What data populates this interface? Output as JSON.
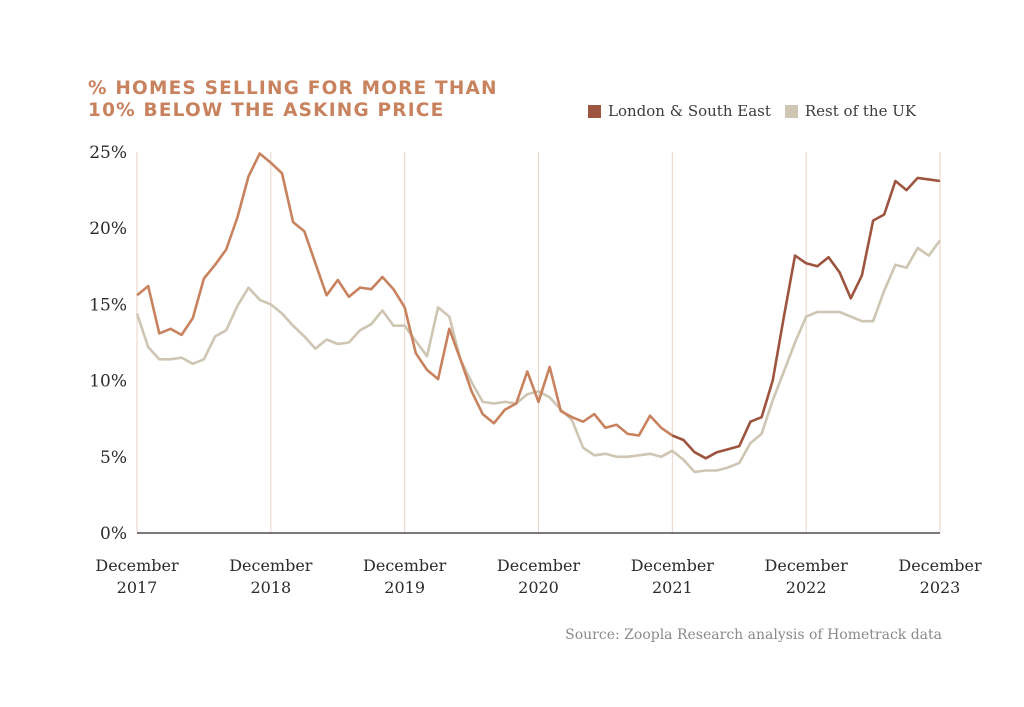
{
  "chart_data": {
    "type": "line",
    "title": "% HOMES SELLING FOR MORE THAN 10% BELOW THE ASKING PRICE",
    "source": "Source: Zoopla Research analysis of Hometrack data",
    "ylim": [
      0,
      25
    ],
    "y_ticks": [
      "0%",
      "5%",
      "10%",
      "15%",
      "20%",
      "25%"
    ],
    "y_tick_values": [
      0,
      5,
      10,
      15,
      20,
      25
    ],
    "x_range": [
      "2017-12",
      "2023-12"
    ],
    "x_ticks": [
      {
        "line1": "December",
        "line2": "2017",
        "date": "2017-12"
      },
      {
        "line1": "December",
        "line2": "2018",
        "date": "2018-12"
      },
      {
        "line1": "December",
        "line2": "2019",
        "date": "2019-12"
      },
      {
        "line1": "December",
        "line2": "2020",
        "date": "2020-12"
      },
      {
        "line1": "December",
        "line2": "2021",
        "date": "2021-12"
      },
      {
        "line1": "December",
        "line2": "2022",
        "date": "2022-12"
      },
      {
        "line1": "December",
        "line2": "2023",
        "date": "2023-12"
      }
    ],
    "grid": "vertical lines at each December",
    "legend_position": "top-right",
    "x": [
      "2017-12",
      "2018-01",
      "2018-02",
      "2018-03",
      "2018-04",
      "2018-05",
      "2018-06",
      "2018-07",
      "2018-08",
      "2018-09",
      "2018-10",
      "2018-11",
      "2018-12",
      "2019-01",
      "2019-02",
      "2019-03",
      "2019-04",
      "2019-05",
      "2019-06",
      "2019-07",
      "2019-08",
      "2019-09",
      "2019-10",
      "2019-11",
      "2019-12",
      "2020-01",
      "2020-02",
      "2020-03",
      "2020-04",
      "2020-05",
      "2020-06",
      "2020-07",
      "2020-08",
      "2020-09",
      "2020-10",
      "2020-11",
      "2020-12",
      "2021-01",
      "2021-02",
      "2021-03",
      "2021-04",
      "2021-05",
      "2021-06",
      "2021-07",
      "2021-08",
      "2021-09",
      "2021-10",
      "2021-11",
      "2021-12",
      "2022-01",
      "2022-02",
      "2022-03",
      "2022-04",
      "2022-05",
      "2022-06",
      "2022-07",
      "2022-08",
      "2022-09",
      "2022-10",
      "2022-11",
      "2022-12",
      "2023-01",
      "2023-02",
      "2023-03",
      "2023-04",
      "2023-05",
      "2023-06",
      "2023-07",
      "2023-08",
      "2023-09",
      "2023-10",
      "2023-11",
      "2023-12"
    ],
    "series": [
      {
        "name": "London & South East",
        "color": "#c8825e",
        "color_recent": "#9d5540",
        "values": [
          15.6,
          16.2,
          13.1,
          13.4,
          13.0,
          14.1,
          16.7,
          17.6,
          18.6,
          20.7,
          23.4,
          24.9,
          24.3,
          23.6,
          20.4,
          19.8,
          17.7,
          15.6,
          16.6,
          15.5,
          16.1,
          16.0,
          16.8,
          16.0,
          14.8,
          11.8,
          10.7,
          10.1,
          13.4,
          11.4,
          9.3,
          7.8,
          7.2,
          8.1,
          8.5,
          10.6,
          8.6,
          10.9,
          8.0,
          7.6,
          7.3,
          7.8,
          6.9,
          7.1,
          6.5,
          6.4,
          7.7,
          6.9,
          6.4,
          6.1,
          5.3,
          4.9,
          5.3,
          5.5,
          5.7,
          7.3,
          7.6,
          10.0,
          14.2,
          18.2,
          17.7,
          17.5,
          18.1,
          17.1,
          15.4,
          16.9,
          20.5,
          20.9,
          23.1,
          22.5,
          23.3,
          23.2,
          23.1
        ]
      },
      {
        "name": "Rest of the UK",
        "color": "#cfc5b3",
        "values": [
          14.4,
          12.2,
          11.4,
          11.4,
          11.5,
          11.1,
          11.4,
          12.9,
          13.3,
          14.9,
          16.1,
          15.3,
          15.0,
          14.4,
          13.6,
          12.9,
          12.1,
          12.7,
          12.4,
          12.5,
          13.3,
          13.7,
          14.6,
          13.6,
          13.6,
          12.6,
          11.6,
          14.8,
          14.2,
          11.4,
          9.9,
          8.6,
          8.5,
          8.6,
          8.5,
          9.1,
          9.3,
          8.9,
          8.1,
          7.4,
          5.6,
          5.1,
          5.2,
          5.0,
          5.0,
          5.1,
          5.2,
          5.0,
          5.4,
          4.8,
          4.0,
          4.1,
          4.1,
          4.3,
          4.6,
          5.9,
          6.5,
          8.7,
          10.6,
          12.5,
          14.2,
          14.5,
          14.5,
          14.5,
          14.2,
          13.9,
          13.9,
          15.9,
          17.6,
          17.4,
          18.7,
          18.2,
          19.2
        ]
      }
    ]
  }
}
